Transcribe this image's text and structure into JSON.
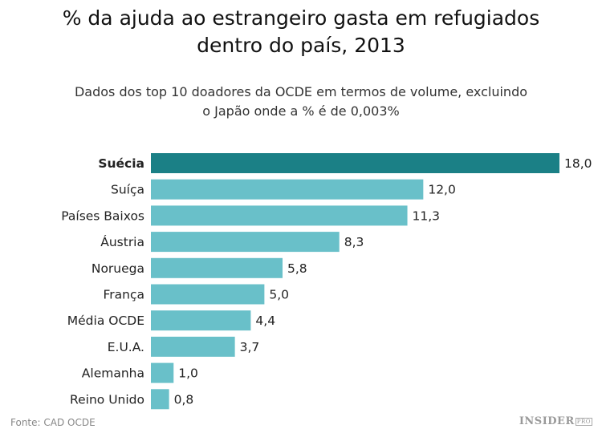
{
  "chart_data": {
    "type": "bar",
    "orientation": "horizontal",
    "title": "% da ajuda ao estrangeiro gasta em refugiados dentro do país, 2013",
    "title_lines": [
      "% da ajuda ao estrangeiro gasta em refugiados",
      "dentro do país, 2013"
    ],
    "subtitle_lines": [
      "Dados dos top 10 doadores da OCDE em termos de volume, excluindo",
      "o Japão onde a % é de 0,003%"
    ],
    "categories": [
      "Suécia",
      "Suíça",
      "Países Baixos",
      "Áustria",
      "Noruega",
      "França",
      "Média OCDE",
      "E.U.A.",
      "Alemanha",
      "Reino Unido"
    ],
    "values": [
      18.0,
      12.0,
      11.3,
      8.3,
      5.8,
      5.0,
      4.4,
      3.7,
      1.0,
      0.8
    ],
    "value_labels": [
      "18,0",
      "12,0",
      "11,3",
      "8,3",
      "5,8",
      "5,0",
      "4,4",
      "3,7",
      "1,0",
      "0,8"
    ],
    "highlight_index": 0,
    "xlim": [
      0,
      18
    ],
    "grid": false,
    "colors": {
      "highlight": "#1b8086",
      "default": "#69c0c9"
    }
  },
  "footer": {
    "source": "Fonte: CAD OCDE",
    "logo": "INSIDER",
    "logo_sub": "PRO"
  }
}
